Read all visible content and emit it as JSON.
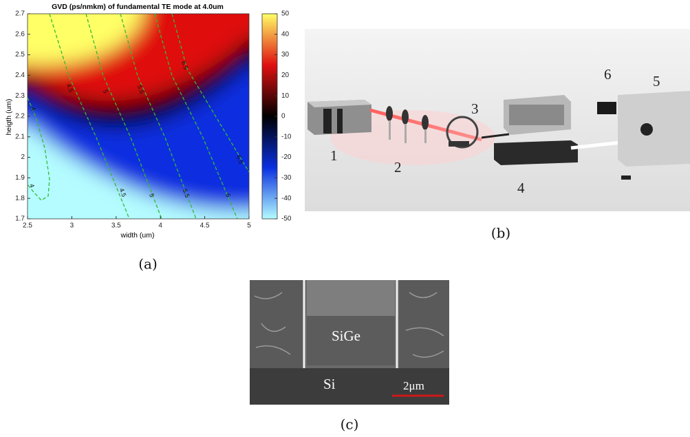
{
  "chart_data": {
    "type": "heatmap",
    "title": "GVD (ps/nmkm) of fundamental TE mode at 4.0um",
    "x_label": "width (um)",
    "y_label": "heigth (um)",
    "xlim": [
      2.5,
      5
    ],
    "xticks": [
      2.5,
      3,
      3.5,
      4,
      4.5,
      5
    ],
    "ylim": [
      1.7,
      2.7
    ],
    "yticks": [
      1.7,
      1.8,
      1.9,
      2,
      2.1,
      2.2,
      2.3,
      2.4,
      2.5,
      2.6,
      2.7
    ],
    "clim": [
      -50,
      50
    ],
    "cticks": [
      -50,
      -40,
      -30,
      -20,
      -10,
      0,
      10,
      20,
      30,
      40,
      50
    ],
    "colormap": [
      "#b4fcff",
      "#0a2fe0",
      "#000000",
      "#e01010",
      "#ffff66"
    ],
    "contour_levels": [
      4,
      4.5,
      5,
      5.5,
      6,
      6.5
    ],
    "contour_color": "#33bb33"
  },
  "captions": [
    "(a)",
    "(b)",
    "(c)"
  ],
  "setup_labels": [
    1,
    2,
    3,
    4,
    5,
    6
  ],
  "sem": {
    "upper_material": "SiGe",
    "lower_material": "Si",
    "scale_bar": "2μm"
  }
}
